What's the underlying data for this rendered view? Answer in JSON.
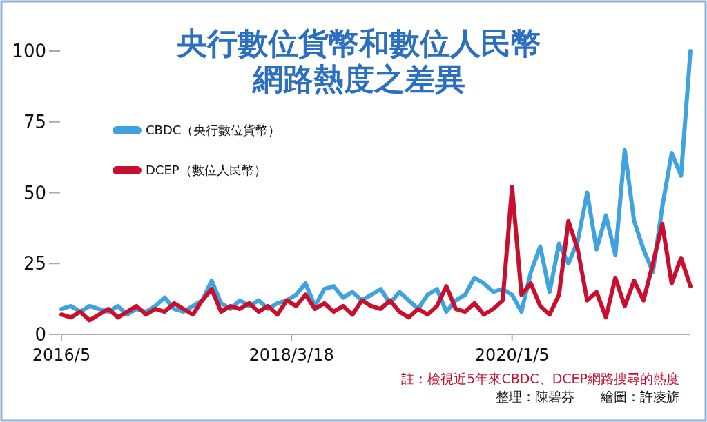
{
  "chart_data": {
    "type": "line",
    "title": "央行數位貨幣和數位人民幣網路熱度之差異",
    "x": [
      "2016-05-01",
      "2016-05-29",
      "2016-06-26",
      "2016-07-24",
      "2016-08-21",
      "2016-09-18",
      "2016-10-16",
      "2016-11-13",
      "2016-12-11",
      "2017-01-08",
      "2017-02-05",
      "2017-03-05",
      "2017-04-02",
      "2017-04-30",
      "2017-05-28",
      "2017-06-25",
      "2017-07-23",
      "2017-08-20",
      "2017-09-17",
      "2017-10-15",
      "2017-11-12",
      "2017-12-10",
      "2018-01-07",
      "2018-02-04",
      "2018-03-04",
      "2018-04-01",
      "2018-04-29",
      "2018-05-27",
      "2018-06-24",
      "2018-07-22",
      "2018-08-19",
      "2018-09-16",
      "2018-10-14",
      "2018-11-11",
      "2018-12-09",
      "2019-01-06",
      "2019-02-03",
      "2019-03-03",
      "2019-03-31",
      "2019-04-28",
      "2019-05-26",
      "2019-06-23",
      "2019-07-21",
      "2019-08-18",
      "2019-09-15",
      "2019-10-13",
      "2019-11-10",
      "2019-12-08",
      "2020-01-05",
      "2020-02-02",
      "2020-03-01",
      "2020-03-29",
      "2020-04-26",
      "2020-05-24",
      "2020-06-21",
      "2020-07-19",
      "2020-08-16",
      "2020-09-13",
      "2020-10-11",
      "2020-11-08",
      "2020-12-06",
      "2021-01-03",
      "2021-01-31",
      "2021-02-28",
      "2021-03-28",
      "2021-04-25",
      "2021-05-23",
      "2021-06-20"
    ],
    "series": [
      {
        "name": "CBDC（央行數位貨幣）",
        "color": "#3fa3e0",
        "values": [
          9,
          10,
          8,
          10,
          9,
          8,
          10,
          7,
          9,
          8,
          10,
          13,
          9,
          8,
          10,
          12,
          19,
          11,
          9,
          12,
          10,
          12,
          9,
          11,
          12,
          14,
          18,
          10,
          16,
          17,
          13,
          15,
          12,
          14,
          16,
          11,
          15,
          12,
          9,
          14,
          16,
          8,
          12,
          14,
          20,
          18,
          15,
          16,
          14,
          8,
          22,
          31,
          15,
          32,
          25,
          33,
          50,
          30,
          42,
          28,
          65,
          40,
          30,
          22,
          45,
          64,
          56,
          100
        ]
      },
      {
        "name": "DCEP（數位人民幣）",
        "color": "#c8102e",
        "values": [
          7,
          6,
          8,
          5,
          7,
          9,
          6,
          8,
          10,
          7,
          9,
          8,
          11,
          9,
          7,
          12,
          16,
          8,
          10,
          9,
          11,
          8,
          10,
          7,
          12,
          10,
          14,
          9,
          11,
          8,
          10,
          7,
          12,
          10,
          9,
          12,
          8,
          6,
          9,
          7,
          10,
          17,
          9,
          8,
          11,
          7,
          9,
          12,
          52,
          14,
          18,
          10,
          7,
          14,
          40,
          30,
          12,
          15,
          6,
          20,
          10,
          19,
          12,
          25,
          39,
          18,
          27,
          17
        ]
      }
    ],
    "xlim": [
      "2016-05-01",
      "2021-06-20"
    ],
    "xticks": [
      {
        "value": "2016-05-01",
        "label": "2016/5"
      },
      {
        "value": "2018-03-18",
        "label": "2018/3/18"
      },
      {
        "value": "2020-01-05",
        "label": "2020/1/5"
      }
    ],
    "ylim": [
      0,
      100
    ],
    "yticks": [
      0,
      25,
      50,
      75,
      100
    ],
    "grid": false,
    "legend": "top left",
    "line_style": "solid",
    "marker": "none",
    "annotations": [
      "註：檢視近5年來CBDC、DCEP網路搜尋的熱度",
      "整理：陳碧芬　　繪圖：許凌旂"
    ]
  }
}
